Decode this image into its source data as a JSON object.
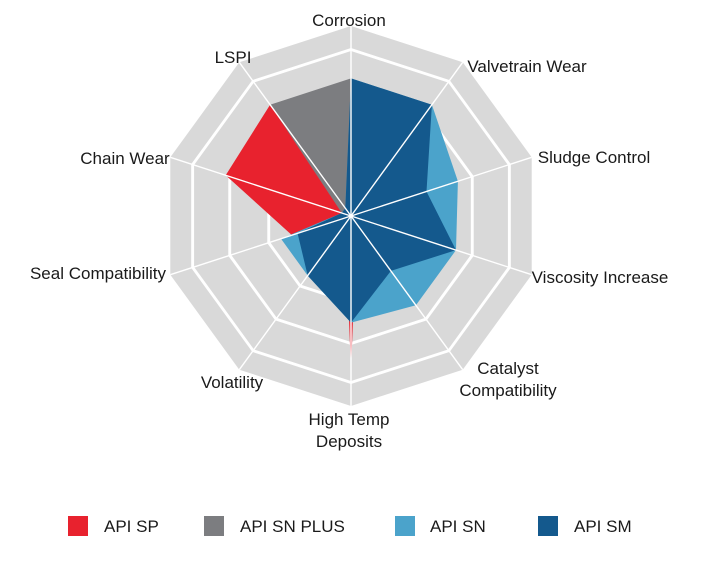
{
  "chart_data": {
    "type": "radar",
    "title": "",
    "axes": [
      {
        "label": [
          "Corrosion"
        ]
      },
      {
        "label": [
          "Valvetrain Wear"
        ]
      },
      {
        "label": [
          "Sludge Control"
        ]
      },
      {
        "label": [
          "Viscosity Increase"
        ]
      },
      {
        "label": [
          "Catalyst",
          "Compatibility"
        ]
      },
      {
        "label": [
          "High Temp",
          "Deposits"
        ]
      },
      {
        "label": [
          "Volatility"
        ]
      },
      {
        "label": [
          "Seal Compatibility"
        ]
      },
      {
        "label": [
          "Chain Wear"
        ]
      },
      {
        "label": [
          "LSPI"
        ]
      }
    ],
    "levels": 4,
    "max": 4,
    "grid": true,
    "legend_position": "bottom",
    "series": [
      {
        "name": "API SP",
        "color": "#e8222e",
        "values": [
          0.25,
          0.25,
          0.25,
          0.25,
          0.25,
          4,
          0.25,
          1.6,
          3.4,
          3.55
        ]
      },
      {
        "name": "API SN PLUS",
        "color": "#7c7d80",
        "values": [
          3.55,
          0.25,
          0.25,
          0.25,
          0.25,
          0.25,
          0.25,
          0.25,
          0.25,
          3.55
        ]
      },
      {
        "name": "API SN",
        "color": "#4ba3cb",
        "values": [
          3.55,
          3.55,
          2.9,
          2.85,
          2.85,
          2.75,
          1.9,
          1.9,
          0.25,
          0.25
        ]
      },
      {
        "name": "API SM",
        "color": "#14598d",
        "values": [
          3.55,
          3.55,
          2.05,
          2.85,
          1.75,
          2.75,
          1.9,
          1.45,
          0.25,
          0.25
        ]
      }
    ]
  }
}
